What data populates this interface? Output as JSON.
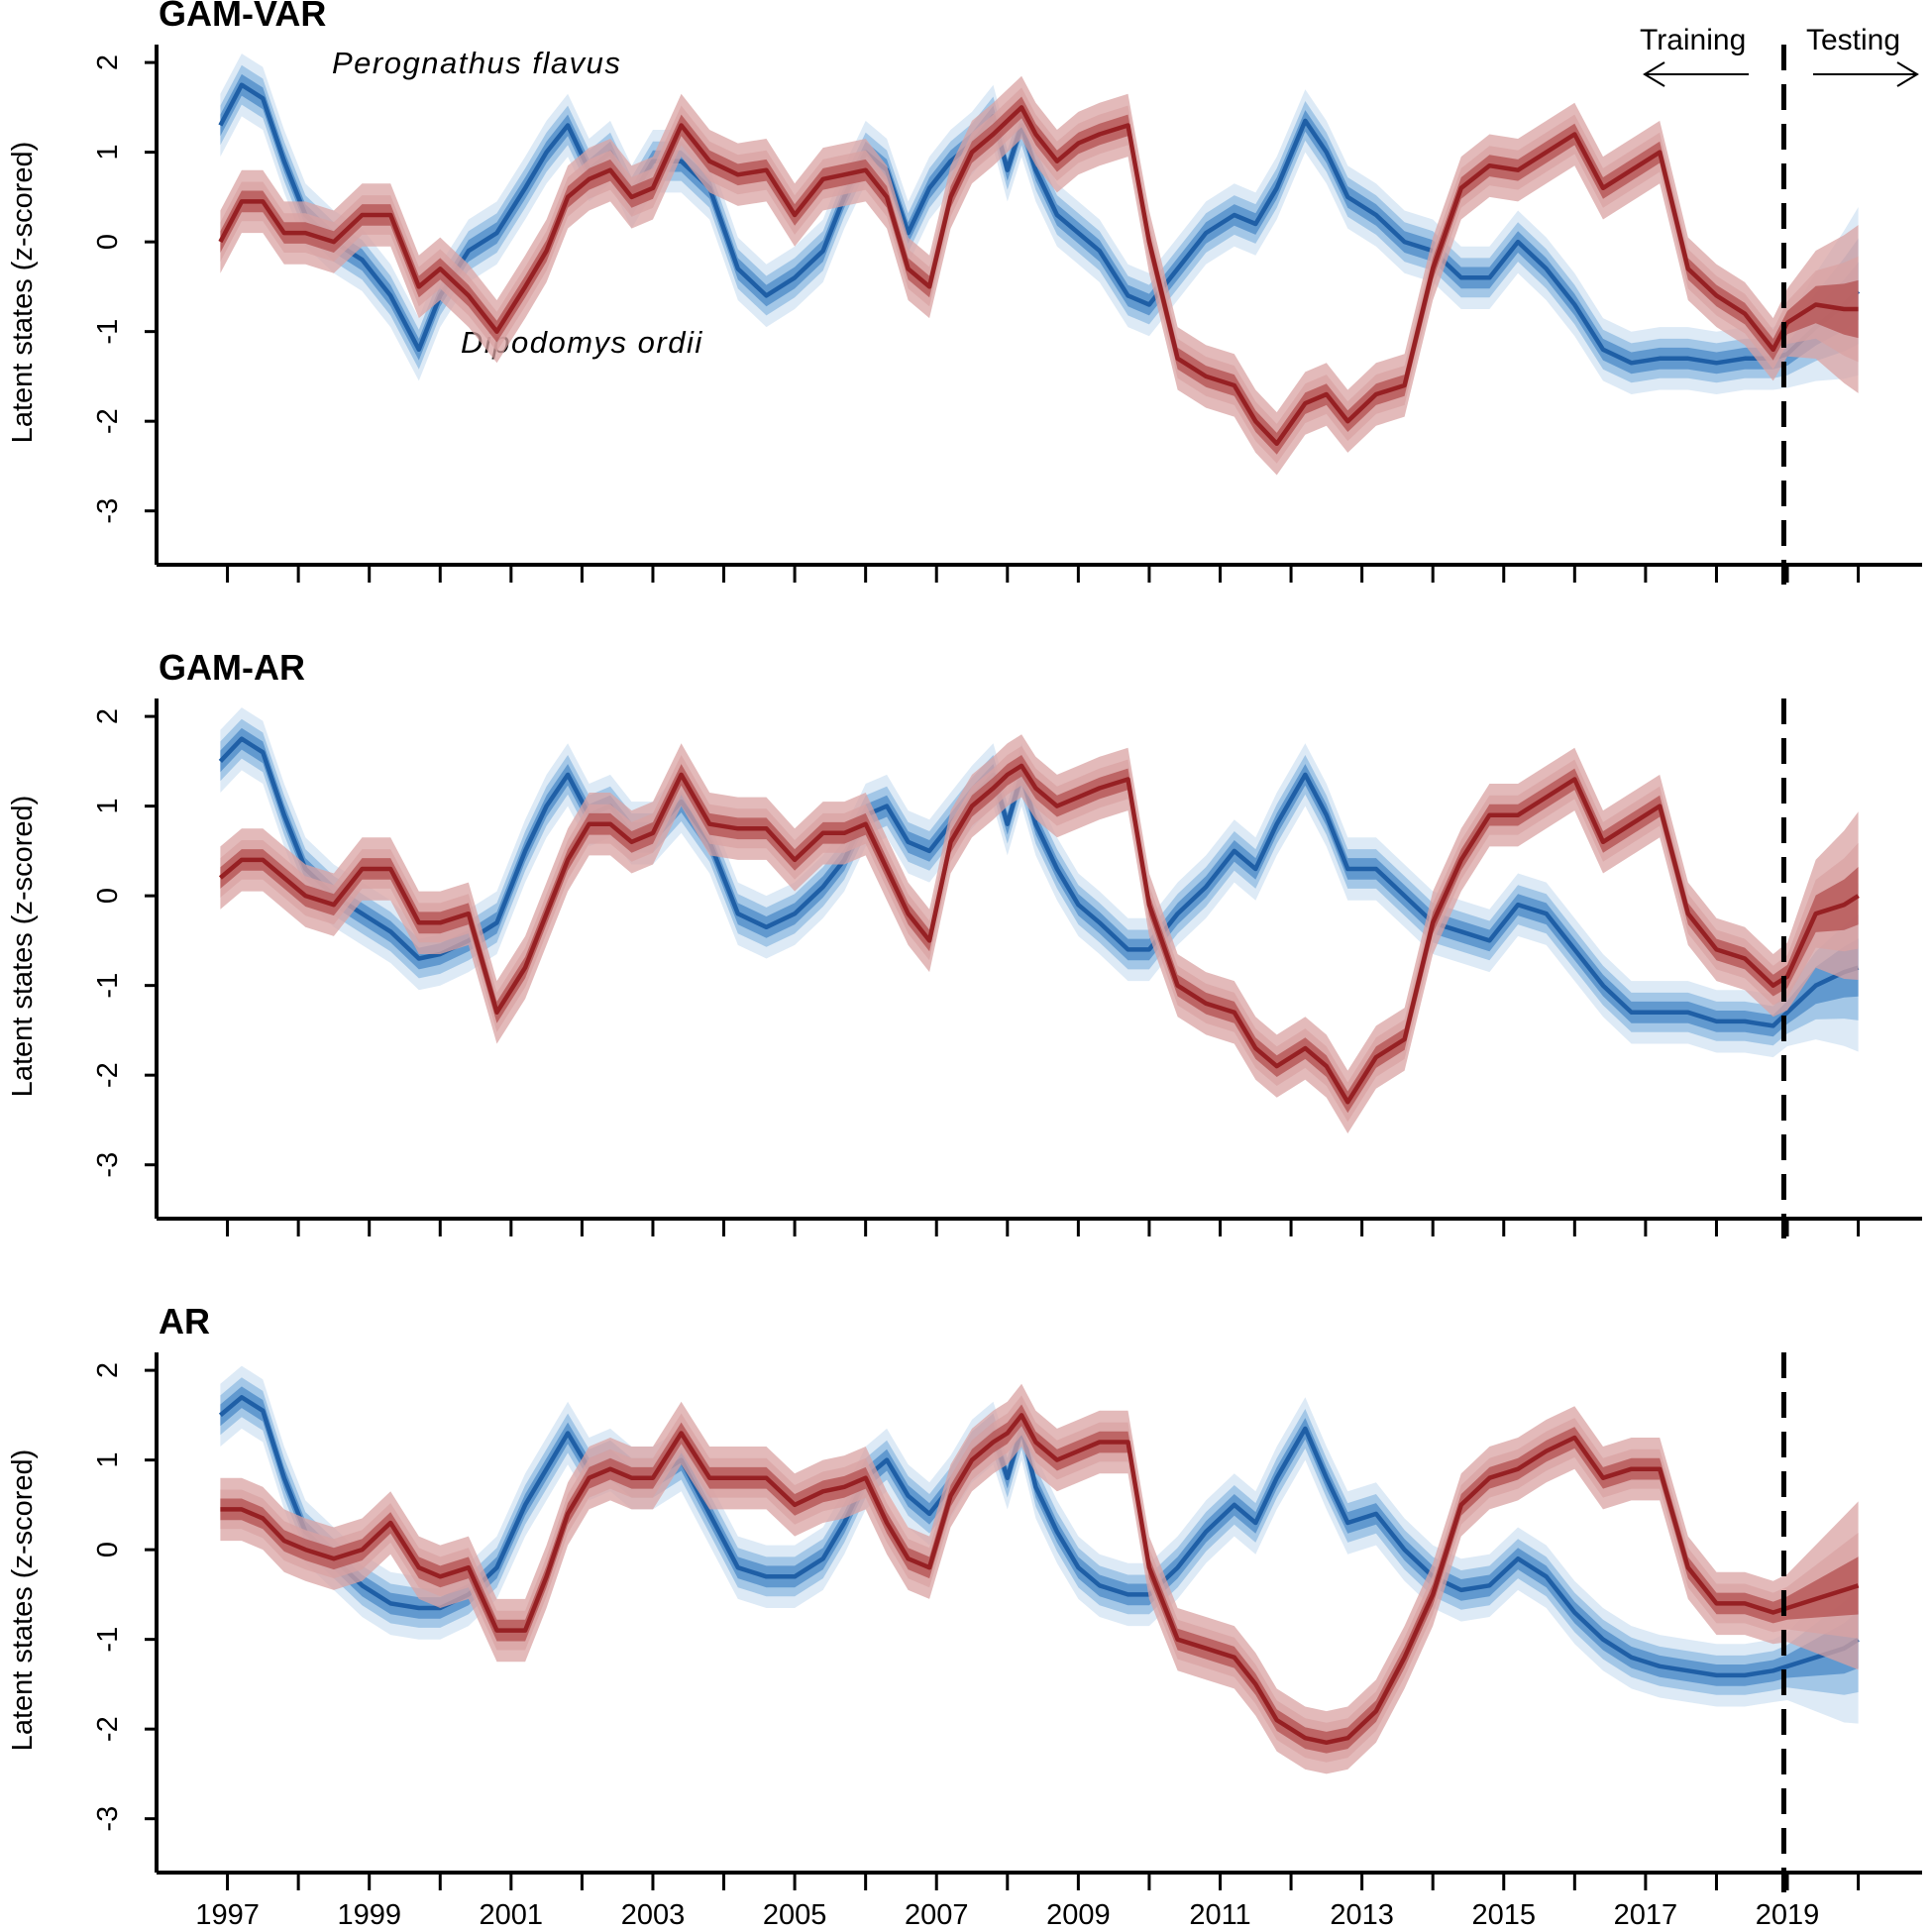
{
  "colors": {
    "blue_line": "#1f5fa6",
    "blue_band_inner": "#5a93cc",
    "blue_band_mid": "#9cc3e6",
    "blue_band_outer": "#d9e8f5",
    "red_line": "#962023",
    "red_band_inner": "#b34f4f",
    "red_band_outer": "#d9a3a3",
    "axis": "#000000"
  },
  "annotations": {
    "species_blue": "Perognathus flavus",
    "species_red": "Dipodomys ordii",
    "training": "Training",
    "testing": "Testing"
  },
  "chart_data": [
    {
      "type": "line",
      "title": "GAM-VAR",
      "xlabel": "",
      "ylabel": "Latent states (z-scored)",
      "xlim": [
        1996.0,
        2020.9
      ],
      "ylim": [
        -3.6,
        2.2
      ],
      "yticks": [
        -3,
        -2,
        -1,
        0,
        1,
        2
      ],
      "xticks": [
        1997,
        1999,
        2001,
        2003,
        2005,
        2007,
        2009,
        2011,
        2013,
        2015,
        2017,
        2019
      ],
      "xtick_marks": [
        1997,
        1998,
        1999,
        2000,
        2001,
        2002,
        2003,
        2004,
        2005,
        2006,
        2007,
        2008,
        2009,
        2010,
        2011,
        2012,
        2013,
        2014,
        2015,
        2016,
        2017,
        2018,
        2019,
        2020
      ],
      "forecast_start": 2018.95,
      "series": [
        {
          "name": "Perognathus flavus",
          "x": [
            1996.9,
            1997.2,
            1997.5,
            1997.8,
            1998.1,
            1998.5,
            1998.9,
            1999.3,
            1999.7,
            2000.0,
            2000.4,
            2000.8,
            2001.2,
            2001.5,
            2001.8,
            2002.1,
            2002.4,
            2002.7,
            2003.0,
            2003.4,
            2003.8,
            2004.2,
            2004.6,
            2005.0,
            2005.4,
            2005.7,
            2006.0,
            2006.3,
            2006.6,
            2006.9,
            2007.2,
            2007.5,
            2007.8,
            2008.0,
            2008.2,
            2008.4,
            2008.7,
            2009.0,
            2009.3,
            2009.7,
            2010.0,
            2010.4,
            2010.8,
            2011.2,
            2011.5,
            2011.8,
            2012.2,
            2012.5,
            2012.8,
            2013.2,
            2013.6,
            2014.0,
            2014.4,
            2014.8,
            2015.2,
            2015.6,
            2016.0,
            2016.4,
            2016.8,
            2017.2,
            2017.6,
            2018.0,
            2018.4,
            2018.8,
            2019.0,
            2019.4,
            2019.8,
            2020.0
          ],
          "y": [
            1.3,
            1.75,
            1.6,
            0.9,
            0.3,
            0.0,
            -0.2,
            -0.6,
            -1.2,
            -0.6,
            -0.1,
            0.1,
            0.6,
            1.0,
            1.3,
            0.8,
            1.0,
            0.5,
            0.9,
            0.9,
            0.6,
            -0.3,
            -0.6,
            -0.4,
            -0.1,
            0.5,
            1.0,
            0.8,
            0.1,
            0.6,
            0.9,
            1.1,
            1.4,
            0.8,
            1.3,
            0.8,
            0.3,
            0.1,
            -0.1,
            -0.6,
            -0.7,
            -0.3,
            0.1,
            0.3,
            0.2,
            0.6,
            1.35,
            1.0,
            0.5,
            0.3,
            0.0,
            -0.1,
            -0.4,
            -0.4,
            0.0,
            -0.3,
            -0.7,
            -1.2,
            -1.35,
            -1.3,
            -1.3,
            -1.35,
            -1.3,
            -1.3,
            -1.25,
            -0.95,
            -0.7,
            -0.55
          ]
        },
        {
          "name": "Dipodomys ordii",
          "x": [
            1996.9,
            1997.2,
            1997.5,
            1997.8,
            1998.1,
            1998.5,
            1998.9,
            1999.3,
            1999.7,
            2000.0,
            2000.4,
            2000.8,
            2001.2,
            2001.5,
            2001.8,
            2002.1,
            2002.4,
            2002.7,
            2003.0,
            2003.4,
            2003.8,
            2004.2,
            2004.6,
            2005.0,
            2005.4,
            2005.7,
            2006.0,
            2006.3,
            2006.6,
            2006.9,
            2007.2,
            2007.5,
            2007.8,
            2008.0,
            2008.2,
            2008.4,
            2008.7,
            2009.0,
            2009.3,
            2009.7,
            2010.0,
            2010.4,
            2010.8,
            2011.2,
            2011.5,
            2011.8,
            2012.2,
            2012.5,
            2012.8,
            2013.2,
            2013.6,
            2014.0,
            2014.4,
            2014.8,
            2015.2,
            2015.6,
            2016.0,
            2016.4,
            2016.8,
            2017.2,
            2017.6,
            2018.0,
            2018.4,
            2018.8,
            2019.0,
            2019.4,
            2019.8,
            2020.0
          ],
          "y": [
            0.0,
            0.45,
            0.45,
            0.1,
            0.1,
            0.0,
            0.3,
            0.3,
            -0.5,
            -0.3,
            -0.6,
            -1.0,
            -0.5,
            -0.1,
            0.5,
            0.7,
            0.8,
            0.5,
            0.6,
            1.3,
            0.9,
            0.75,
            0.8,
            0.3,
            0.7,
            0.75,
            0.8,
            0.5,
            -0.3,
            -0.5,
            0.5,
            1.0,
            1.2,
            1.35,
            1.5,
            1.2,
            0.9,
            1.1,
            1.2,
            1.3,
            0.0,
            -1.3,
            -1.5,
            -1.6,
            -2.0,
            -2.25,
            -1.8,
            -1.7,
            -2.0,
            -1.7,
            -1.6,
            -0.3,
            0.6,
            0.85,
            0.8,
            1.0,
            1.2,
            0.6,
            0.8,
            1.0,
            -0.3,
            -0.6,
            -0.8,
            -1.2,
            -0.9,
            -0.7,
            -0.75,
            -0.75
          ]
        }
      ]
    },
    {
      "type": "line",
      "title": "GAM-AR",
      "xlabel": "",
      "ylabel": "Latent states (z-scored)",
      "xlim": [
        1996.0,
        2020.9
      ],
      "ylim": [
        -3.6,
        2.2
      ],
      "yticks": [
        -3,
        -2,
        -1,
        0,
        1,
        2
      ],
      "xticks": [
        1997,
        1999,
        2001,
        2003,
        2005,
        2007,
        2009,
        2011,
        2013,
        2015,
        2017,
        2019
      ],
      "xtick_marks": [
        1997,
        1998,
        1999,
        2000,
        2001,
        2002,
        2003,
        2004,
        2005,
        2006,
        2007,
        2008,
        2009,
        2010,
        2011,
        2012,
        2013,
        2014,
        2015,
        2016,
        2017,
        2018,
        2019,
        2020
      ],
      "forecast_start": 2018.95,
      "series": [
        {
          "name": "Perognathus flavus",
          "x": [
            1996.9,
            1997.2,
            1997.5,
            1997.8,
            1998.1,
            1998.5,
            1998.9,
            1999.3,
            1999.7,
            2000.0,
            2000.4,
            2000.8,
            2001.2,
            2001.5,
            2001.8,
            2002.1,
            2002.4,
            2002.7,
            2003.0,
            2003.4,
            2003.8,
            2004.2,
            2004.6,
            2005.0,
            2005.4,
            2005.7,
            2006.0,
            2006.3,
            2006.6,
            2006.9,
            2007.2,
            2007.5,
            2007.8,
            2008.0,
            2008.2,
            2008.4,
            2008.7,
            2009.0,
            2009.3,
            2009.7,
            2010.0,
            2010.4,
            2010.8,
            2011.2,
            2011.5,
            2011.8,
            2012.2,
            2012.5,
            2012.8,
            2013.2,
            2013.6,
            2014.0,
            2014.4,
            2014.8,
            2015.2,
            2015.6,
            2016.0,
            2016.4,
            2016.8,
            2017.2,
            2017.6,
            2018.0,
            2018.4,
            2018.8,
            2019.0,
            2019.4,
            2019.8,
            2020.0
          ],
          "y": [
            1.5,
            1.75,
            1.6,
            0.9,
            0.3,
            0.0,
            -0.2,
            -0.4,
            -0.7,
            -0.65,
            -0.5,
            -0.3,
            0.5,
            1.0,
            1.35,
            0.9,
            1.0,
            0.7,
            0.7,
            1.05,
            0.6,
            -0.2,
            -0.35,
            -0.2,
            0.1,
            0.4,
            0.9,
            1.0,
            0.6,
            0.5,
            0.8,
            1.1,
            1.35,
            0.8,
            1.35,
            0.8,
            0.3,
            -0.1,
            -0.3,
            -0.6,
            -0.6,
            -0.2,
            0.1,
            0.5,
            0.3,
            0.8,
            1.35,
            0.9,
            0.3,
            0.3,
            0.0,
            -0.3,
            -0.4,
            -0.5,
            -0.1,
            -0.2,
            -0.6,
            -1.0,
            -1.3,
            -1.3,
            -1.3,
            -1.4,
            -1.4,
            -1.45,
            -1.3,
            -1.0,
            -0.85,
            -0.8
          ]
        },
        {
          "name": "Dipodomys ordii",
          "x": [
            1996.9,
            1997.2,
            1997.5,
            1997.8,
            1998.1,
            1998.5,
            1998.9,
            1999.3,
            1999.7,
            2000.0,
            2000.4,
            2000.8,
            2001.2,
            2001.5,
            2001.8,
            2002.1,
            2002.4,
            2002.7,
            2003.0,
            2003.4,
            2003.8,
            2004.2,
            2004.6,
            2005.0,
            2005.4,
            2005.7,
            2006.0,
            2006.3,
            2006.6,
            2006.9,
            2007.2,
            2007.5,
            2007.8,
            2008.0,
            2008.2,
            2008.4,
            2008.7,
            2009.0,
            2009.3,
            2009.7,
            2010.0,
            2010.4,
            2010.8,
            2011.2,
            2011.5,
            2011.8,
            2012.2,
            2012.5,
            2012.8,
            2013.2,
            2013.6,
            2014.0,
            2014.4,
            2014.8,
            2015.2,
            2015.6,
            2016.0,
            2016.4,
            2016.8,
            2017.2,
            2017.6,
            2018.0,
            2018.4,
            2018.8,
            2019.0,
            2019.4,
            2019.8,
            2020.0
          ],
          "y": [
            0.2,
            0.4,
            0.4,
            0.2,
            0.0,
            -0.1,
            0.3,
            0.3,
            -0.3,
            -0.3,
            -0.2,
            -1.3,
            -0.8,
            -0.2,
            0.4,
            0.8,
            0.8,
            0.6,
            0.7,
            1.35,
            0.8,
            0.75,
            0.75,
            0.4,
            0.7,
            0.7,
            0.8,
            0.3,
            -0.2,
            -0.5,
            0.6,
            1.0,
            1.2,
            1.35,
            1.45,
            1.2,
            1.0,
            1.1,
            1.2,
            1.3,
            -0.1,
            -1.0,
            -1.2,
            -1.3,
            -1.7,
            -1.9,
            -1.7,
            -1.9,
            -2.3,
            -1.8,
            -1.6,
            -0.3,
            0.4,
            0.9,
            0.9,
            1.1,
            1.3,
            0.6,
            0.8,
            1.0,
            -0.2,
            -0.6,
            -0.7,
            -1.0,
            -0.9,
            -0.2,
            -0.1,
            0.0
          ]
        }
      ]
    },
    {
      "type": "line",
      "title": "AR",
      "xlabel": "",
      "ylabel": "Latent states (z-scored)",
      "xlim": [
        1996.0,
        2020.9
      ],
      "ylim": [
        -3.6,
        2.2
      ],
      "yticks": [
        -3,
        -2,
        -1,
        0,
        1,
        2
      ],
      "xticks": [
        1997,
        1999,
        2001,
        2003,
        2005,
        2007,
        2009,
        2011,
        2013,
        2015,
        2017,
        2019
      ],
      "xtick_marks": [
        1997,
        1998,
        1999,
        2000,
        2001,
        2002,
        2003,
        2004,
        2005,
        2006,
        2007,
        2008,
        2009,
        2010,
        2011,
        2012,
        2013,
        2014,
        2015,
        2016,
        2017,
        2018,
        2019,
        2020
      ],
      "forecast_start": 2018.95,
      "series": [
        {
          "name": "Perognathus flavus",
          "x": [
            1996.9,
            1997.2,
            1997.5,
            1997.8,
            1998.1,
            1998.5,
            1998.9,
            1999.3,
            1999.7,
            2000.0,
            2000.4,
            2000.8,
            2001.2,
            2001.5,
            2001.8,
            2002.1,
            2002.4,
            2002.7,
            2003.0,
            2003.4,
            2003.8,
            2004.2,
            2004.6,
            2005.0,
            2005.4,
            2005.7,
            2006.0,
            2006.3,
            2006.6,
            2006.9,
            2007.2,
            2007.5,
            2007.8,
            2008.0,
            2008.2,
            2008.4,
            2008.7,
            2009.0,
            2009.3,
            2009.7,
            2010.0,
            2010.4,
            2010.8,
            2011.2,
            2011.5,
            2011.8,
            2012.2,
            2012.5,
            2012.8,
            2013.2,
            2013.6,
            2014.0,
            2014.4,
            2014.8,
            2015.2,
            2015.6,
            2016.0,
            2016.4,
            2016.8,
            2017.2,
            2017.6,
            2018.0,
            2018.4,
            2018.8,
            2019.0,
            2019.4,
            2019.8,
            2020.0
          ],
          "y": [
            1.5,
            1.7,
            1.55,
            0.8,
            0.2,
            -0.1,
            -0.4,
            -0.6,
            -0.65,
            -0.65,
            -0.5,
            -0.2,
            0.5,
            0.9,
            1.3,
            0.9,
            1.0,
            0.8,
            0.8,
            1.0,
            0.4,
            -0.2,
            -0.3,
            -0.3,
            -0.1,
            0.3,
            0.8,
            1.0,
            0.6,
            0.4,
            0.7,
            1.1,
            1.3,
            0.8,
            1.35,
            0.7,
            0.2,
            -0.2,
            -0.4,
            -0.5,
            -0.5,
            -0.2,
            0.2,
            0.5,
            0.3,
            0.8,
            1.35,
            0.8,
            0.3,
            0.4,
            0.0,
            -0.3,
            -0.45,
            -0.4,
            -0.1,
            -0.3,
            -0.7,
            -1.0,
            -1.2,
            -1.3,
            -1.35,
            -1.4,
            -1.4,
            -1.35,
            -1.3,
            -1.2,
            -1.1,
            -1.0
          ]
        },
        {
          "name": "Dipodomys ordii",
          "x": [
            1996.9,
            1997.2,
            1997.5,
            1997.8,
            1998.1,
            1998.5,
            1998.9,
            1999.3,
            1999.7,
            2000.0,
            2000.4,
            2000.8,
            2001.2,
            2001.5,
            2001.8,
            2002.1,
            2002.4,
            2002.7,
            2003.0,
            2003.4,
            2003.8,
            2004.2,
            2004.6,
            2005.0,
            2005.4,
            2005.7,
            2006.0,
            2006.3,
            2006.6,
            2006.9,
            2007.2,
            2007.5,
            2007.8,
            2008.0,
            2008.2,
            2008.4,
            2008.7,
            2009.0,
            2009.3,
            2009.7,
            2010.0,
            2010.4,
            2010.8,
            2011.2,
            2011.5,
            2011.8,
            2012.2,
            2012.5,
            2012.8,
            2013.2,
            2013.6,
            2014.0,
            2014.4,
            2014.8,
            2015.2,
            2015.6,
            2016.0,
            2016.4,
            2016.8,
            2017.2,
            2017.6,
            2018.0,
            2018.4,
            2018.8,
            2019.0,
            2019.4,
            2019.8,
            2020.0
          ],
          "y": [
            0.45,
            0.45,
            0.35,
            0.1,
            0.0,
            -0.1,
            0.0,
            0.3,
            -0.2,
            -0.3,
            -0.2,
            -0.9,
            -0.9,
            -0.3,
            0.4,
            0.8,
            0.9,
            0.8,
            0.8,
            1.3,
            0.8,
            0.8,
            0.8,
            0.5,
            0.65,
            0.7,
            0.8,
            0.3,
            -0.1,
            -0.2,
            0.6,
            1.0,
            1.2,
            1.3,
            1.5,
            1.2,
            1.0,
            1.1,
            1.2,
            1.2,
            -0.2,
            -1.0,
            -1.1,
            -1.2,
            -1.5,
            -1.9,
            -2.1,
            -2.15,
            -2.1,
            -1.8,
            -1.2,
            -0.5,
            0.5,
            0.8,
            0.9,
            1.1,
            1.25,
            0.8,
            0.9,
            0.9,
            -0.2,
            -0.6,
            -0.6,
            -0.7,
            -0.65,
            -0.55,
            -0.45,
            -0.4
          ]
        }
      ]
    }
  ]
}
